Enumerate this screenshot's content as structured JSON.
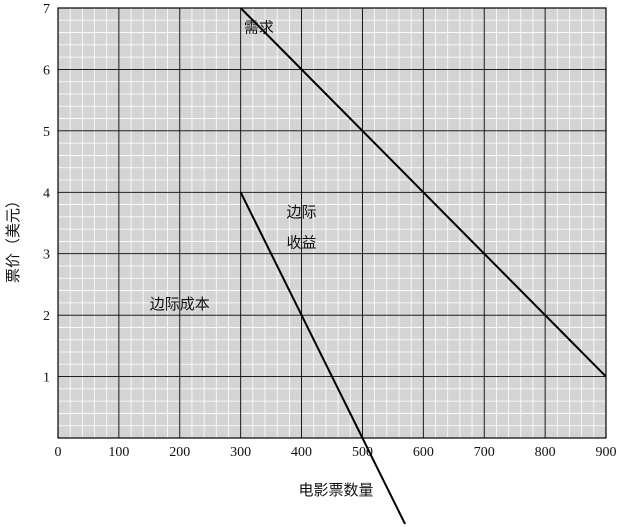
{
  "chart_data": {
    "type": "line",
    "xlabel": "电影票数量",
    "ylabel": "票价（美元）",
    "xlim": [
      0,
      900
    ],
    "ylim": [
      0,
      7
    ],
    "x_ticks": [
      0,
      100,
      200,
      300,
      400,
      500,
      600,
      700,
      800,
      900
    ],
    "y_ticks": [
      1,
      2,
      3,
      4,
      5,
      6,
      7
    ],
    "grid": true,
    "minor_grid": true,
    "series": [
      {
        "name": "需求",
        "x": [
          300,
          900
        ],
        "y": [
          7,
          1
        ]
      },
      {
        "name": "边际收益",
        "x": [
          300,
          500,
          570
        ],
        "y": [
          4,
          0,
          -1.4
        ]
      }
    ],
    "annotations": [
      {
        "text": "需求",
        "x": 330,
        "y": 6.6
      },
      {
        "text": "边际",
        "x": 400,
        "y": 3.6
      },
      {
        "text": "收益",
        "x": 400,
        "y": 3.1
      },
      {
        "text": "边际成本",
        "x": 200,
        "y": 2.1
      }
    ]
  }
}
